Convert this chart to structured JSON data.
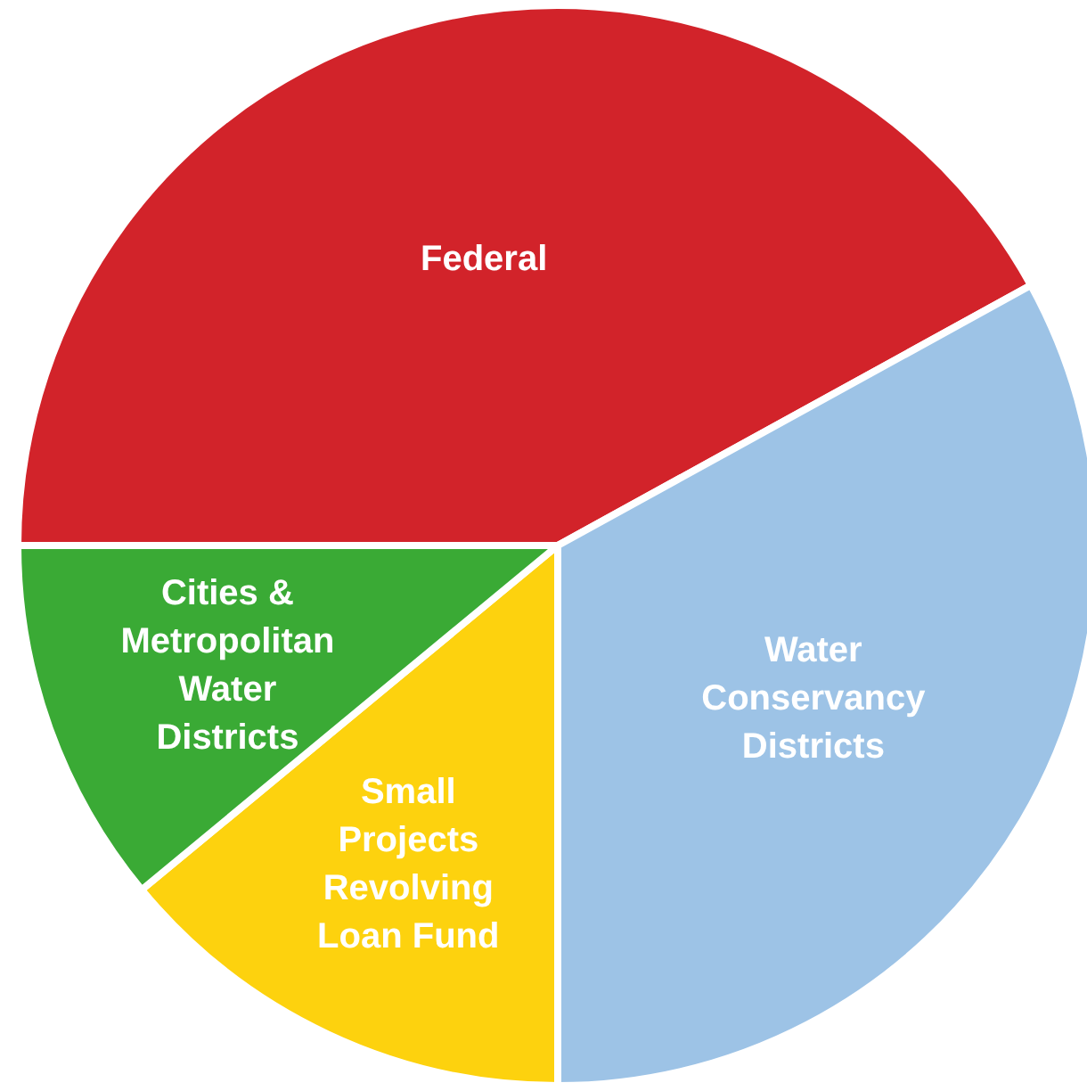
{
  "chart_data": {
    "type": "pie",
    "categories": [
      "Federal",
      "Water Conservancy Districts",
      "Small Projects Revolving Loan Fund",
      "Cities & Metropolitan Water Districts"
    ],
    "values": [
      42,
      33,
      14,
      11
    ],
    "colors": [
      "#d2232a",
      "#9dc3e6",
      "#fdd20e",
      "#3aaa35"
    ]
  }
}
